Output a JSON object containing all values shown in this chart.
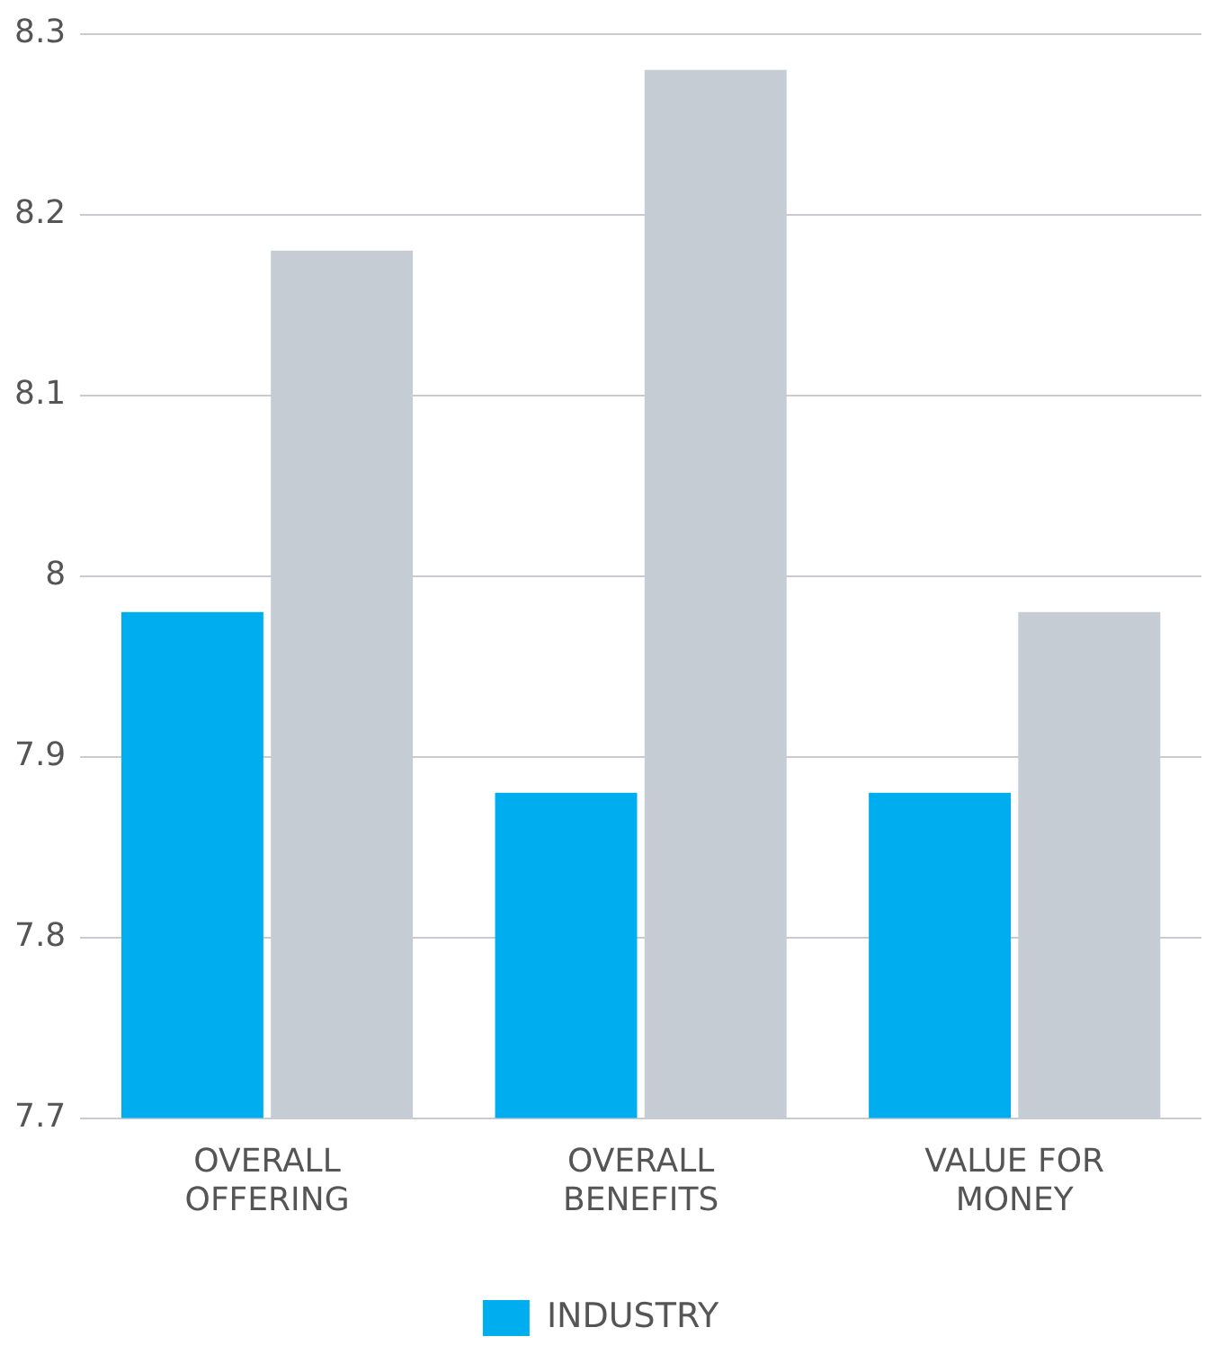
{
  "chart_data": {
    "type": "bar",
    "categories": [
      "OVERALL OFFERING",
      "OVERALL BENEFITS",
      "VALUE FOR MONEY"
    ],
    "series": [
      {
        "name": "INDUSTRY",
        "color": "#00aeef",
        "values": [
          7.98,
          7.88,
          7.88
        ]
      },
      {
        "color": "#c5ccd4",
        "values": [
          8.18,
          8.28,
          7.98
        ]
      }
    ],
    "ylim": [
      7.7,
      8.3
    ],
    "yticks": [
      7.7,
      7.8,
      7.9,
      8,
      8.1,
      8.2,
      8.3
    ],
    "grid": "y",
    "legend": "bottom"
  }
}
